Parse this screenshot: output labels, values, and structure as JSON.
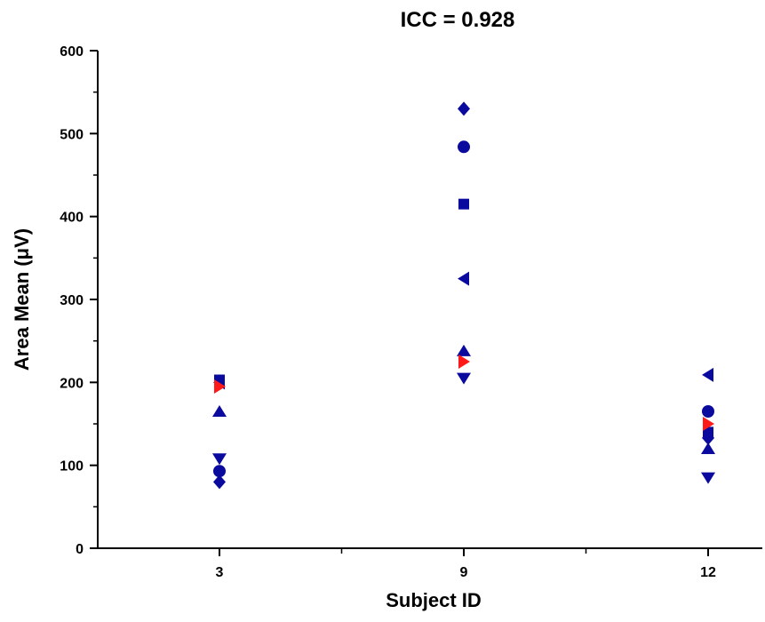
{
  "chart_data": {
    "type": "scatter",
    "title": "ICC = 0.928",
    "xlabel": "Subject ID",
    "ylabel": "Area Mean (μV)",
    "categories": [
      "3",
      "9",
      "12"
    ],
    "ylim": [
      0,
      600
    ],
    "yticks": [
      0,
      100,
      200,
      300,
      400,
      500,
      600
    ],
    "grid": false,
    "legend": "none",
    "series": [
      {
        "marker": "square",
        "color": "#0a0a9e",
        "values": [
          203,
          415,
          140
        ]
      },
      {
        "marker": "circle",
        "color": "#0a0a9e",
        "values": [
          93,
          484,
          165
        ]
      },
      {
        "marker": "triangle-up",
        "color": "#0a0a9e",
        "values": [
          165,
          238,
          120
        ]
      },
      {
        "marker": "triangle-down",
        "color": "#0a0a9e",
        "values": [
          108,
          205,
          85
        ]
      },
      {
        "marker": "diamond",
        "color": "#0a0a9e",
        "values": [
          80,
          530,
          133
        ]
      },
      {
        "marker": "triangle-left",
        "color": "#0a0a9e",
        "values": [
          200,
          325,
          209
        ]
      },
      {
        "marker": "triangle-right",
        "color": "#ff1a1a",
        "values": [
          195,
          225,
          150
        ]
      }
    ]
  }
}
